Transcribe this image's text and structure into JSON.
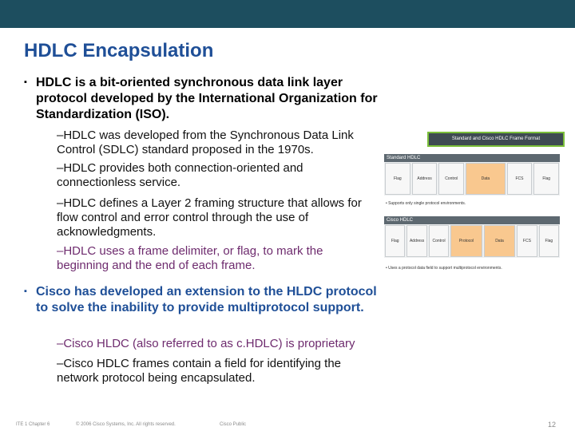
{
  "header": {
    "title": "HDLC Encapsulation"
  },
  "bullets": [
    {
      "text": "HDLC is a bit-oriented synchronous data link layer protocol developed by the International Organization for Standardization (ISO).",
      "sub": [
        "–HDLC was developed from the Synchronous Data Link Control (SDLC) standard proposed in the 1970s.",
        "–HDLC provides both connection-oriented and connectionless service.",
        "–HDLC defines a Layer 2 framing structure that allows for flow control and error control through the use of acknowledgments.",
        "–HDLC uses a frame delimiter, or flag, to mark the beginning and the end of each frame."
      ]
    },
    {
      "text": "Cisco has developed an extension to the HLDC protocol to solve the inability to provide multiprotocol support.",
      "sub": [
        "–Cisco HLDC (also referred to as c.HDLC) is proprietary",
        "–Cisco HDLC frames contain a field for identifying the network protocol being encapsulated."
      ]
    }
  ],
  "figure": {
    "title": "Standard and Cisco HDLC Frame Format",
    "sections": [
      {
        "label": "Standard HDLC",
        "fields": [
          "Flag",
          "Address",
          "Control",
          "Data",
          "FCS",
          "Flag"
        ],
        "note": "• Supports only single protocol environments."
      },
      {
        "label": "Cisco HDLC",
        "fields": [
          "Flag",
          "Address",
          "Control",
          "Protocol",
          "Data",
          "FCS",
          "Flag"
        ],
        "note": "• Uses a protocol data field to support multiprotocol environments."
      }
    ]
  },
  "footer": {
    "left": "ITE 1 Chapter 6",
    "copyright": "© 2006 Cisco Systems, Inc. All rights reserved.",
    "classification": "Cisco Public",
    "page": "12"
  }
}
